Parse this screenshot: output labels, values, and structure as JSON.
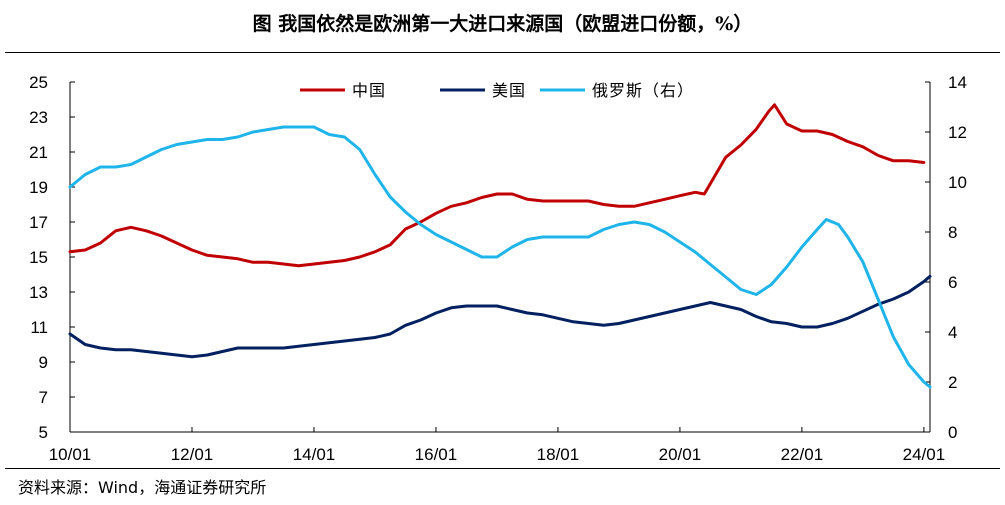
{
  "title": "图  我国依然是欧洲第一大进口来源国（欧盟进口份额，%）",
  "source": "资料来源：Wind，海通证券研究所",
  "chart_data": {
    "type": "line",
    "y_left": {
      "range": [
        5,
        25
      ],
      "ticks": [
        "5",
        "7",
        "9",
        "11",
        "13",
        "15",
        "17",
        "19",
        "21",
        "23",
        "25"
      ]
    },
    "y_right": {
      "range": [
        0,
        14
      ],
      "ticks": [
        "0",
        "2",
        "4",
        "6",
        "8",
        "10",
        "12",
        "14"
      ]
    },
    "x_range": [
      2010.0,
      2024.1
    ],
    "x_ticks": [
      {
        "label": "10/01",
        "value": 2010
      },
      {
        "label": "12/01",
        "value": 2012
      },
      {
        "label": "14/01",
        "value": 2014
      },
      {
        "label": "16/01",
        "value": 2016
      },
      {
        "label": "18/01",
        "value": 2018
      },
      {
        "label": "20/01",
        "value": 2020
      },
      {
        "label": "22/01",
        "value": 2022
      },
      {
        "label": "24/01",
        "value": 2024
      }
    ],
    "legend_position": "top",
    "series": [
      {
        "name": "中国",
        "axis": "left",
        "color": "#C00000",
        "points": [
          [
            2010.0,
            15.3
          ],
          [
            2010.25,
            15.4
          ],
          [
            2010.5,
            15.8
          ],
          [
            2010.75,
            16.5
          ],
          [
            2011.0,
            16.7
          ],
          [
            2011.25,
            16.5
          ],
          [
            2011.5,
            16.2
          ],
          [
            2011.75,
            15.8
          ],
          [
            2012.0,
            15.4
          ],
          [
            2012.25,
            15.1
          ],
          [
            2012.5,
            15.0
          ],
          [
            2012.75,
            14.9
          ],
          [
            2013.0,
            14.7
          ],
          [
            2013.25,
            14.7
          ],
          [
            2013.5,
            14.6
          ],
          [
            2013.75,
            14.5
          ],
          [
            2014.0,
            14.6
          ],
          [
            2014.25,
            14.7
          ],
          [
            2014.5,
            14.8
          ],
          [
            2014.75,
            15.0
          ],
          [
            2015.0,
            15.3
          ],
          [
            2015.25,
            15.7
          ],
          [
            2015.5,
            16.6
          ],
          [
            2015.75,
            17.0
          ],
          [
            2016.0,
            17.5
          ],
          [
            2016.25,
            17.9
          ],
          [
            2016.5,
            18.1
          ],
          [
            2016.75,
            18.4
          ],
          [
            2017.0,
            18.6
          ],
          [
            2017.25,
            18.6
          ],
          [
            2017.5,
            18.3
          ],
          [
            2017.75,
            18.2
          ],
          [
            2018.0,
            18.2
          ],
          [
            2018.25,
            18.2
          ],
          [
            2018.5,
            18.2
          ],
          [
            2018.75,
            18.0
          ],
          [
            2019.0,
            17.9
          ],
          [
            2019.25,
            17.9
          ],
          [
            2019.5,
            18.1
          ],
          [
            2019.75,
            18.3
          ],
          [
            2020.0,
            18.5
          ],
          [
            2020.25,
            18.7
          ],
          [
            2020.4,
            18.6
          ],
          [
            2020.55,
            19.5
          ],
          [
            2020.75,
            20.7
          ],
          [
            2021.0,
            21.4
          ],
          [
            2021.25,
            22.3
          ],
          [
            2021.45,
            23.3
          ],
          [
            2021.55,
            23.7
          ],
          [
            2021.75,
            22.6
          ],
          [
            2022.0,
            22.2
          ],
          [
            2022.25,
            22.2
          ],
          [
            2022.5,
            22.0
          ],
          [
            2022.75,
            21.6
          ],
          [
            2023.0,
            21.3
          ],
          [
            2023.25,
            20.8
          ],
          [
            2023.5,
            20.5
          ],
          [
            2023.75,
            20.5
          ],
          [
            2024.0,
            20.4
          ]
        ]
      },
      {
        "name": "美国",
        "axis": "left",
        "color": "#002060",
        "points": [
          [
            2010.0,
            10.6
          ],
          [
            2010.25,
            10.0
          ],
          [
            2010.5,
            9.8
          ],
          [
            2010.75,
            9.7
          ],
          [
            2011.0,
            9.7
          ],
          [
            2011.25,
            9.6
          ],
          [
            2011.5,
            9.5
          ],
          [
            2011.75,
            9.4
          ],
          [
            2012.0,
            9.3
          ],
          [
            2012.25,
            9.4
          ],
          [
            2012.5,
            9.6
          ],
          [
            2012.75,
            9.8
          ],
          [
            2013.0,
            9.8
          ],
          [
            2013.25,
            9.8
          ],
          [
            2013.5,
            9.8
          ],
          [
            2013.75,
            9.9
          ],
          [
            2014.0,
            10.0
          ],
          [
            2014.25,
            10.1
          ],
          [
            2014.5,
            10.2
          ],
          [
            2014.75,
            10.3
          ],
          [
            2015.0,
            10.4
          ],
          [
            2015.25,
            10.6
          ],
          [
            2015.5,
            11.1
          ],
          [
            2015.75,
            11.4
          ],
          [
            2016.0,
            11.8
          ],
          [
            2016.25,
            12.1
          ],
          [
            2016.5,
            12.2
          ],
          [
            2016.75,
            12.2
          ],
          [
            2017.0,
            12.2
          ],
          [
            2017.25,
            12.0
          ],
          [
            2017.5,
            11.8
          ],
          [
            2017.75,
            11.7
          ],
          [
            2018.0,
            11.5
          ],
          [
            2018.25,
            11.3
          ],
          [
            2018.5,
            11.2
          ],
          [
            2018.75,
            11.1
          ],
          [
            2019.0,
            11.2
          ],
          [
            2019.25,
            11.4
          ],
          [
            2019.5,
            11.6
          ],
          [
            2019.75,
            11.8
          ],
          [
            2020.0,
            12.0
          ],
          [
            2020.25,
            12.2
          ],
          [
            2020.5,
            12.4
          ],
          [
            2020.75,
            12.2
          ],
          [
            2021.0,
            12.0
          ],
          [
            2021.25,
            11.6
          ],
          [
            2021.5,
            11.3
          ],
          [
            2021.75,
            11.2
          ],
          [
            2022.0,
            11.0
          ],
          [
            2022.25,
            11.0
          ],
          [
            2022.5,
            11.2
          ],
          [
            2022.75,
            11.5
          ],
          [
            2023.0,
            11.9
          ],
          [
            2023.25,
            12.3
          ],
          [
            2023.5,
            12.6
          ],
          [
            2023.75,
            13.0
          ],
          [
            2024.0,
            13.6
          ],
          [
            2024.1,
            13.9
          ]
        ]
      },
      {
        "name": "俄罗斯（右）",
        "axis": "right",
        "color": "#1FB4EA",
        "points": [
          [
            2010.0,
            9.8
          ],
          [
            2010.25,
            10.3
          ],
          [
            2010.5,
            10.6
          ],
          [
            2010.75,
            10.6
          ],
          [
            2011.0,
            10.7
          ],
          [
            2011.25,
            11.0
          ],
          [
            2011.5,
            11.3
          ],
          [
            2011.75,
            11.5
          ],
          [
            2012.0,
            11.6
          ],
          [
            2012.25,
            11.7
          ],
          [
            2012.5,
            11.7
          ],
          [
            2012.75,
            11.8
          ],
          [
            2013.0,
            12.0
          ],
          [
            2013.25,
            12.1
          ],
          [
            2013.5,
            12.2
          ],
          [
            2013.75,
            12.2
          ],
          [
            2014.0,
            12.2
          ],
          [
            2014.25,
            11.9
          ],
          [
            2014.5,
            11.8
          ],
          [
            2014.75,
            11.3
          ],
          [
            2015.0,
            10.3
          ],
          [
            2015.25,
            9.4
          ],
          [
            2015.5,
            8.8
          ],
          [
            2015.75,
            8.3
          ],
          [
            2016.0,
            7.9
          ],
          [
            2016.25,
            7.6
          ],
          [
            2016.5,
            7.3
          ],
          [
            2016.75,
            7.0
          ],
          [
            2017.0,
            7.0
          ],
          [
            2017.25,
            7.4
          ],
          [
            2017.5,
            7.7
          ],
          [
            2017.75,
            7.8
          ],
          [
            2018.0,
            7.8
          ],
          [
            2018.25,
            7.8
          ],
          [
            2018.5,
            7.8
          ],
          [
            2018.75,
            8.1
          ],
          [
            2019.0,
            8.3
          ],
          [
            2019.25,
            8.4
          ],
          [
            2019.5,
            8.3
          ],
          [
            2019.75,
            8.0
          ],
          [
            2020.0,
            7.6
          ],
          [
            2020.25,
            7.2
          ],
          [
            2020.5,
            6.7
          ],
          [
            2020.75,
            6.2
          ],
          [
            2021.0,
            5.7
          ],
          [
            2021.25,
            5.5
          ],
          [
            2021.5,
            5.9
          ],
          [
            2021.75,
            6.6
          ],
          [
            2022.0,
            7.4
          ],
          [
            2022.25,
            8.1
          ],
          [
            2022.4,
            8.5
          ],
          [
            2022.6,
            8.3
          ],
          [
            2022.75,
            7.8
          ],
          [
            2023.0,
            6.8
          ],
          [
            2023.25,
            5.3
          ],
          [
            2023.5,
            3.8
          ],
          [
            2023.75,
            2.7
          ],
          [
            2024.0,
            2.0
          ],
          [
            2024.1,
            1.8
          ]
        ]
      }
    ]
  }
}
